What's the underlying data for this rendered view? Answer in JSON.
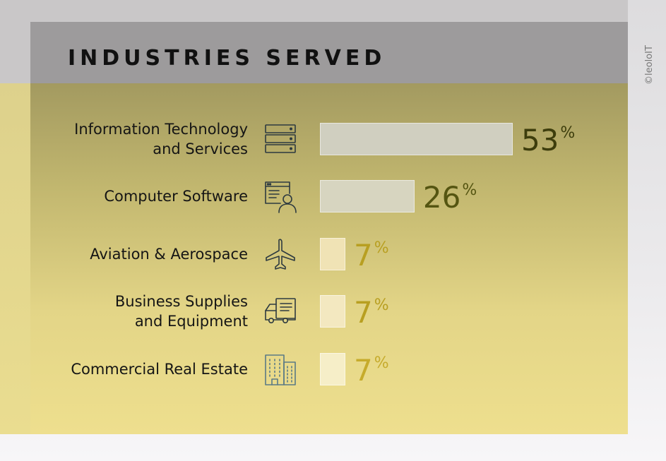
{
  "header": {
    "title": "INDUSTRIES SERVED"
  },
  "copyright": "©leoloIT",
  "chart_data": {
    "type": "bar",
    "orientation": "horizontal",
    "title": "INDUSTRIES SERVED",
    "categories": [
      "Information Technology\nand Services",
      "Computer Software",
      "Aviation & Aerospace",
      "Business Supplies\nand Equipment",
      "Commercial Real Estate"
    ],
    "values": [
      53,
      26,
      7,
      7,
      7
    ],
    "value_suffix": "%",
    "xlim": [
      0,
      100
    ],
    "grid": false,
    "icons": [
      "server-icon",
      "software-user-icon",
      "airplane-icon",
      "delivery-truck-icon",
      "office-building-icon"
    ],
    "bar_colors": [
      "#d0cfc0",
      "#d7d5c0",
      "#f0e3b5",
      "#f3e8c0",
      "#f6eec8"
    ],
    "value_colors": [
      "#3d3d0c",
      "#555511",
      "#b89f21",
      "#b89f21",
      "#c6ab2c"
    ],
    "icon_colors": [
      "#2d3a40",
      "#2d3a40",
      "#2d3a40",
      "#2d3a40",
      "#5a7a86"
    ]
  }
}
